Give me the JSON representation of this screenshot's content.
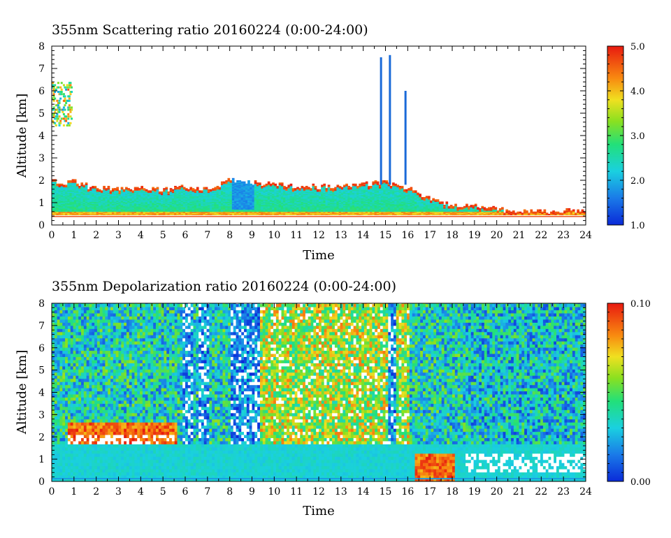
{
  "chart_data": [
    {
      "type": "heatmap",
      "title": "355nm Scattering ratio  20160224 (0:00-24:00)",
      "xlabel": "Time",
      "ylabel": "Altitude [km]",
      "xlim": [
        0,
        24
      ],
      "ylim": [
        0,
        8
      ],
      "x_ticks": [
        "0",
        "1",
        "2",
        "3",
        "4",
        "5",
        "6",
        "7",
        "8",
        "9",
        "10",
        "11",
        "12",
        "13",
        "14",
        "15",
        "16",
        "17",
        "18",
        "19",
        "20",
        "21",
        "22",
        "23",
        "24"
      ],
      "y_ticks": [
        "0",
        "1",
        "2",
        "3",
        "4",
        "5",
        "6",
        "7",
        "8"
      ],
      "colorbar": {
        "range": [
          1.0,
          5.0
        ],
        "labels": [
          "1.0",
          "2.0",
          "3.0",
          "4.0",
          "5.0"
        ]
      },
      "cloud_top_km": [
        [
          0,
          1.9
        ],
        [
          1,
          1.9
        ],
        [
          2,
          1.6
        ],
        [
          3,
          1.6
        ],
        [
          4,
          1.65
        ],
        [
          5,
          1.55
        ],
        [
          6,
          1.7
        ],
        [
          7,
          1.6
        ],
        [
          8,
          2.0
        ],
        [
          9,
          1.9
        ],
        [
          10,
          1.8
        ],
        [
          11,
          1.7
        ],
        [
          12,
          1.7
        ],
        [
          13,
          1.75
        ],
        [
          14,
          1.8
        ],
        [
          15,
          1.9
        ],
        [
          16,
          1.6
        ],
        [
          17,
          1.1
        ],
        [
          18,
          0.9
        ],
        [
          19,
          0.8
        ],
        [
          20,
          0.7
        ],
        [
          21,
          0.6
        ],
        [
          22,
          0.6
        ],
        [
          23,
          0.6
        ],
        [
          24,
          0.7
        ]
      ],
      "spikes": [
        {
          "t": 14.8,
          "top_km": 7.5
        },
        {
          "t": 15.2,
          "top_km": 7.6
        },
        {
          "t": 15.9,
          "top_km": 6.0
        }
      ]
    },
    {
      "type": "heatmap",
      "title": "355nm Depolarization ratio  20160224 (0:00-24:00)",
      "xlabel": "Time",
      "ylabel": "Altitude [km]",
      "xlim": [
        0,
        24
      ],
      "ylim": [
        0,
        8
      ],
      "x_ticks": [
        "0",
        "1",
        "2",
        "3",
        "4",
        "5",
        "6",
        "7",
        "8",
        "9",
        "10",
        "11",
        "12",
        "13",
        "14",
        "15",
        "16",
        "17",
        "18",
        "19",
        "20",
        "21",
        "22",
        "23",
        "24"
      ],
      "y_ticks": [
        "0",
        "1",
        "2",
        "3",
        "4",
        "5",
        "6",
        "7",
        "8"
      ],
      "colorbar": {
        "range": [
          0.0,
          0.1
        ],
        "labels": [
          "0.00",
          "0.10"
        ]
      }
    }
  ]
}
